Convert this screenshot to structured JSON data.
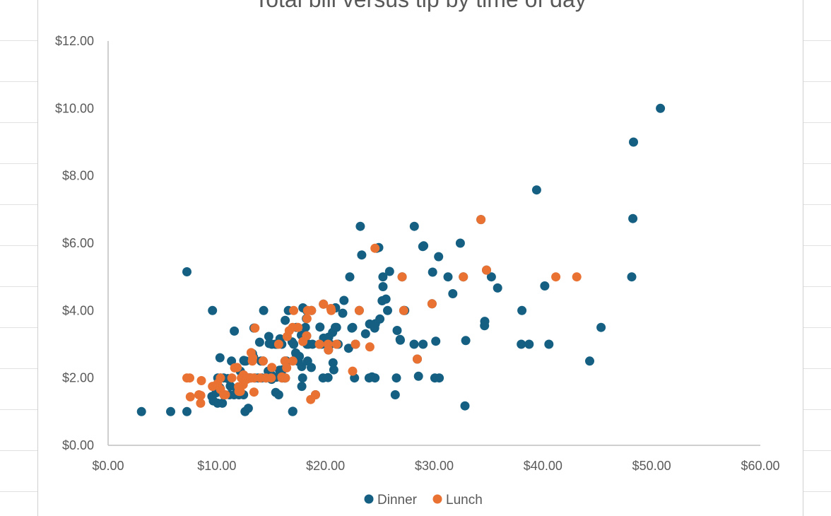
{
  "chart_data": {
    "type": "scatter",
    "title": "Total bill versus tip by time of day",
    "xlabel": "",
    "ylabel": "",
    "xlim": [
      0,
      60
    ],
    "ylim": [
      0,
      12
    ],
    "x_ticks": [
      "$0.00",
      "$10.00",
      "$20.00",
      "$30.00",
      "$40.00",
      "$50.00",
      "$60.00"
    ],
    "y_ticks": [
      "$0.00",
      "$2.00",
      "$4.00",
      "$6.00",
      "$8.00",
      "$10.00",
      "$12.00"
    ],
    "legend_position": "bottom",
    "grid": false,
    "series": [
      {
        "name": "Dinner",
        "color": "#156082",
        "points": [
          [
            3.07,
            1.0
          ],
          [
            5.75,
            1.0
          ],
          [
            7.25,
            1.0
          ],
          [
            7.25,
            5.15
          ],
          [
            9.55,
            1.45
          ],
          [
            9.6,
            4.0
          ],
          [
            9.78,
            1.73
          ],
          [
            9.94,
            1.56
          ],
          [
            10.07,
            1.25
          ],
          [
            10.09,
            2.0
          ],
          [
            10.27,
            1.71
          ],
          [
            10.29,
            2.6
          ],
          [
            10.33,
            1.67
          ],
          [
            10.34,
            2.0
          ],
          [
            10.51,
            1.25
          ],
          [
            10.63,
            2.0
          ],
          [
            10.65,
            1.5
          ],
          [
            11.02,
            1.98
          ],
          [
            11.17,
            1.5
          ],
          [
            11.35,
            2.5
          ],
          [
            11.59,
            1.5
          ],
          [
            11.61,
            3.39
          ],
          [
            12.03,
            1.5
          ],
          [
            12.16,
            2.2
          ],
          [
            12.46,
            1.5
          ],
          [
            12.48,
            2.52
          ],
          [
            12.54,
            2.5
          ],
          [
            12.6,
            1.0
          ],
          [
            12.74,
            2.01
          ],
          [
            12.9,
            1.1
          ],
          [
            13.0,
            2.0
          ],
          [
            13.03,
            2.0
          ],
          [
            13.28,
            2.72
          ],
          [
            13.42,
            3.48
          ],
          [
            13.81,
            2.0
          ],
          [
            13.94,
            3.06
          ],
          [
            14.07,
            2.5
          ],
          [
            14.15,
            2.0
          ],
          [
            14.26,
            2.5
          ],
          [
            14.31,
            4.0
          ],
          [
            14.52,
            2.0
          ],
          [
            14.73,
            2.2
          ],
          [
            14.78,
            3.23
          ],
          [
            15.01,
            2.09
          ],
          [
            15.04,
            1.96
          ],
          [
            15.06,
            3.0
          ],
          [
            15.38,
            3.0
          ],
          [
            15.42,
            1.57
          ],
          [
            15.53,
            3.0
          ],
          [
            15.69,
            1.5
          ],
          [
            15.77,
            2.23
          ],
          [
            15.81,
            3.16
          ],
          [
            16.0,
            2.0
          ],
          [
            16.04,
            2.24
          ],
          [
            16.27,
            2.5
          ],
          [
            16.29,
            3.71
          ],
          [
            16.31,
            2.0
          ],
          [
            16.4,
            2.5
          ],
          [
            16.45,
            2.47
          ],
          [
            16.97,
            1.0
          ],
          [
            16.99,
            1.01
          ],
          [
            17.07,
            3.0
          ],
          [
            17.26,
            2.74
          ],
          [
            17.29,
            2.71
          ],
          [
            17.31,
            3.5
          ],
          [
            17.46,
            2.54
          ],
          [
            17.59,
            2.64
          ],
          [
            17.78,
            3.27
          ],
          [
            17.81,
            2.34
          ],
          [
            17.82,
            1.75
          ],
          [
            17.89,
            2.0
          ],
          [
            17.92,
            4.08
          ],
          [
            18.15,
            3.5
          ],
          [
            18.24,
            3.76
          ],
          [
            18.28,
            4.0
          ],
          [
            18.29,
            3.0
          ],
          [
            18.35,
            2.5
          ],
          [
            18.43,
            3.0
          ],
          [
            18.69,
            2.31
          ],
          [
            18.71,
            4.0
          ],
          [
            19.44,
            3.0
          ],
          [
            19.49,
            3.51
          ],
          [
            19.65,
            3.0
          ],
          [
            19.77,
            2.0
          ],
          [
            19.81,
            4.19
          ],
          [
            19.82,
            3.18
          ],
          [
            20.08,
            3.15
          ],
          [
            20.23,
            2.01
          ],
          [
            20.27,
            2.83
          ],
          [
            20.29,
            3.21
          ],
          [
            20.45,
            3.0
          ],
          [
            20.65,
            3.35
          ],
          [
            20.69,
            2.45
          ],
          [
            20.76,
            2.24
          ],
          [
            20.9,
            3.5
          ],
          [
            20.92,
            4.08
          ],
          [
            21.01,
            3.5
          ],
          [
            21.58,
            3.92
          ],
          [
            21.7,
            4.3
          ],
          [
            22.23,
            5.0
          ],
          [
            22.42,
            3.48
          ],
          [
            22.49,
            3.5
          ],
          [
            22.67,
            2.0
          ],
          [
            22.76,
            3.0
          ],
          [
            23.1,
            4.0
          ],
          [
            23.33,
            5.65
          ],
          [
            23.68,
            3.31
          ],
          [
            24.01,
            2.0
          ],
          [
            24.06,
            3.6
          ],
          [
            24.27,
            2.03
          ],
          [
            24.52,
            3.48
          ],
          [
            24.55,
            2.0
          ],
          [
            24.59,
            3.61
          ],
          [
            25.0,
            3.75
          ],
          [
            25.21,
            4.29
          ],
          [
            25.28,
            5.0
          ],
          [
            25.29,
            4.71
          ],
          [
            25.56,
            4.34
          ],
          [
            25.89,
            5.16
          ],
          [
            26.41,
            1.5
          ],
          [
            26.59,
            3.41
          ],
          [
            26.86,
            3.14
          ],
          [
            26.88,
            3.12
          ],
          [
            27.05,
            5.0
          ],
          [
            27.2,
            4.0
          ],
          [
            28.15,
            3.0
          ],
          [
            28.17,
            6.5
          ],
          [
            28.44,
            2.56
          ],
          [
            28.55,
            2.05
          ],
          [
            28.97,
            3.0
          ],
          [
            29.8,
            4.2
          ],
          [
            29.85,
            5.14
          ],
          [
            30.06,
            2.0
          ],
          [
            30.4,
            5.6
          ],
          [
            30.46,
            2.0
          ],
          [
            31.27,
            5.0
          ],
          [
            31.71,
            4.5
          ],
          [
            32.4,
            6.0
          ],
          [
            32.68,
            5.0
          ],
          [
            32.83,
            1.17
          ],
          [
            34.3,
            6.7
          ],
          [
            34.63,
            3.55
          ],
          [
            34.65,
            3.68
          ],
          [
            34.81,
            5.2
          ],
          [
            35.26,
            5.0
          ],
          [
            35.83,
            4.67
          ],
          [
            38.01,
            3.0
          ],
          [
            38.07,
            4.0
          ],
          [
            38.73,
            3.0
          ],
          [
            39.42,
            7.58
          ],
          [
            40.17,
            4.73
          ],
          [
            40.55,
            3.0
          ],
          [
            44.3,
            2.5
          ],
          [
            45.35,
            3.5
          ],
          [
            48.17,
            5.0
          ],
          [
            48.27,
            6.73
          ],
          [
            48.33,
            9.0
          ],
          [
            50.81,
            10.0
          ],
          [
            23.2,
            6.5
          ],
          [
            28.95,
            5.9
          ],
          [
            26.52,
            2.0
          ],
          [
            24.9,
            5.87
          ],
          [
            13.39,
            2.61
          ],
          [
            16.93,
            3.07
          ],
          [
            17.51,
            2.49
          ],
          [
            18.8,
            3.0
          ],
          [
            14.83,
            3.02
          ],
          [
            9.68,
            1.32
          ],
          [
            11.24,
            1.76
          ],
          [
            11.87,
            1.63
          ],
          [
            13.13,
            2.0
          ],
          [
            16.21,
            2.0
          ],
          [
            20.92,
            4.08
          ],
          [
            22.12,
            2.88
          ],
          [
            24.71,
            5.85
          ],
          [
            29.03,
            5.92
          ],
          [
            30.14,
            3.09
          ],
          [
            32.9,
            3.11
          ],
          [
            12.66,
            2.5
          ],
          [
            15.48,
            2.02
          ],
          [
            16.58,
            4.0
          ],
          [
            19.08,
            1.5
          ],
          [
            25.71,
            4.0
          ],
          [
            27.28,
            4.0
          ],
          [
            21.16,
            3.0
          ],
          [
            13.51,
            2.0
          ],
          [
            18.26,
            3.25
          ],
          [
            15.98,
            3.0
          ]
        ]
      },
      {
        "name": "Lunch",
        "color": "#E97132",
        "points": [
          [
            7.25,
            2.0
          ],
          [
            7.51,
            2.0
          ],
          [
            7.56,
            1.44
          ],
          [
            8.35,
            1.5
          ],
          [
            8.51,
            1.25
          ],
          [
            8.52,
            1.48
          ],
          [
            8.58,
            1.92
          ],
          [
            9.6,
            1.75
          ],
          [
            10.07,
            1.83
          ],
          [
            10.33,
            2.0
          ],
          [
            10.34,
            1.66
          ],
          [
            10.65,
            1.5
          ],
          [
            11.38,
            2.0
          ],
          [
            11.87,
            2.31
          ],
          [
            12.03,
            1.6
          ],
          [
            12.16,
            1.6
          ],
          [
            12.26,
            2.0
          ],
          [
            12.43,
            1.8
          ],
          [
            12.46,
            2.09
          ],
          [
            12.69,
            2.0
          ],
          [
            12.74,
            2.01
          ],
          [
            13.0,
            2.0
          ],
          [
            13.13,
            2.0
          ],
          [
            13.16,
            2.75
          ],
          [
            13.27,
            2.5
          ],
          [
            13.42,
            1.58
          ],
          [
            13.51,
            3.48
          ],
          [
            14.0,
            2.0
          ],
          [
            14.26,
            2.5
          ],
          [
            14.52,
            2.0
          ],
          [
            15.69,
            3.0
          ],
          [
            15.98,
            2.03
          ],
          [
            16.0,
            2.0
          ],
          [
            16.27,
            2.5
          ],
          [
            16.31,
            2.0
          ],
          [
            16.43,
            2.3
          ],
          [
            16.47,
            3.23
          ],
          [
            16.66,
            3.4
          ],
          [
            16.97,
            3.5
          ],
          [
            17.47,
            3.5
          ],
          [
            17.92,
            3.08
          ],
          [
            18.29,
            3.76
          ],
          [
            18.26,
            3.25
          ],
          [
            18.64,
            1.36
          ],
          [
            18.71,
            4.0
          ],
          [
            19.08,
            1.5
          ],
          [
            19.44,
            3.0
          ],
          [
            19.81,
            4.19
          ],
          [
            20.49,
            4.06
          ],
          [
            20.53,
            4.0
          ],
          [
            20.27,
            2.83
          ],
          [
            21.01,
            3.0
          ],
          [
            22.76,
            3.0
          ],
          [
            23.1,
            4.0
          ],
          [
            24.08,
            2.92
          ],
          [
            24.55,
            5.85
          ],
          [
            27.05,
            5.0
          ],
          [
            27.2,
            4.0
          ],
          [
            28.44,
            2.56
          ],
          [
            29.8,
            4.2
          ],
          [
            32.68,
            5.0
          ],
          [
            34.3,
            6.7
          ],
          [
            34.81,
            5.2
          ],
          [
            41.19,
            5.0
          ],
          [
            43.11,
            5.0
          ],
          [
            17.07,
            4.0
          ],
          [
            15.0,
            2.0
          ],
          [
            12.0,
            1.74
          ],
          [
            13.3,
            2.6
          ],
          [
            12.74,
            1.96
          ],
          [
            11.64,
            2.3
          ],
          [
            15.06,
            2.31
          ],
          [
            22.49,
            2.2
          ],
          [
            10.79,
            1.5
          ],
          [
            13.42,
            2.0
          ],
          [
            16.99,
            2.5
          ],
          [
            20.23,
            3.0
          ],
          [
            18.35,
            4.0
          ]
        ]
      }
    ]
  }
}
